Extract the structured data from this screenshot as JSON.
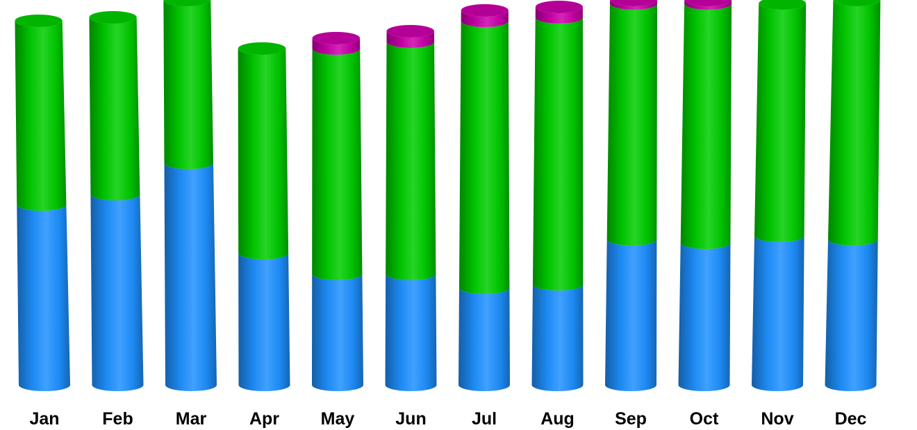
{
  "chart_data": {
    "type": "bar",
    "variant": "stacked-3d-cylinder",
    "title": "",
    "xlabel": "",
    "ylabel": "",
    "legend": "none",
    "grid": false,
    "ylim": [
      0,
      550
    ],
    "categories": [
      "Jan",
      "Feb",
      "Mar",
      "Apr",
      "May",
      "Jun",
      "Jul",
      "Aug",
      "Sep",
      "Oct",
      "Nov",
      "Dec"
    ],
    "series": [
      {
        "color": "#1e90ff",
        "values": [
          260,
          275,
          320,
          190,
          160,
          160,
          140,
          145,
          210,
          205,
          215,
          210
        ]
      },
      {
        "color": "#00cc00",
        "values": [
          265,
          255,
          235,
          295,
          325,
          335,
          385,
          385,
          340,
          345,
          335,
          345
        ]
      },
      {
        "color": "#cc00aa",
        "values": [
          0,
          0,
          0,
          0,
          15,
          15,
          15,
          15,
          5,
          5,
          0,
          0
        ]
      }
    ]
  }
}
